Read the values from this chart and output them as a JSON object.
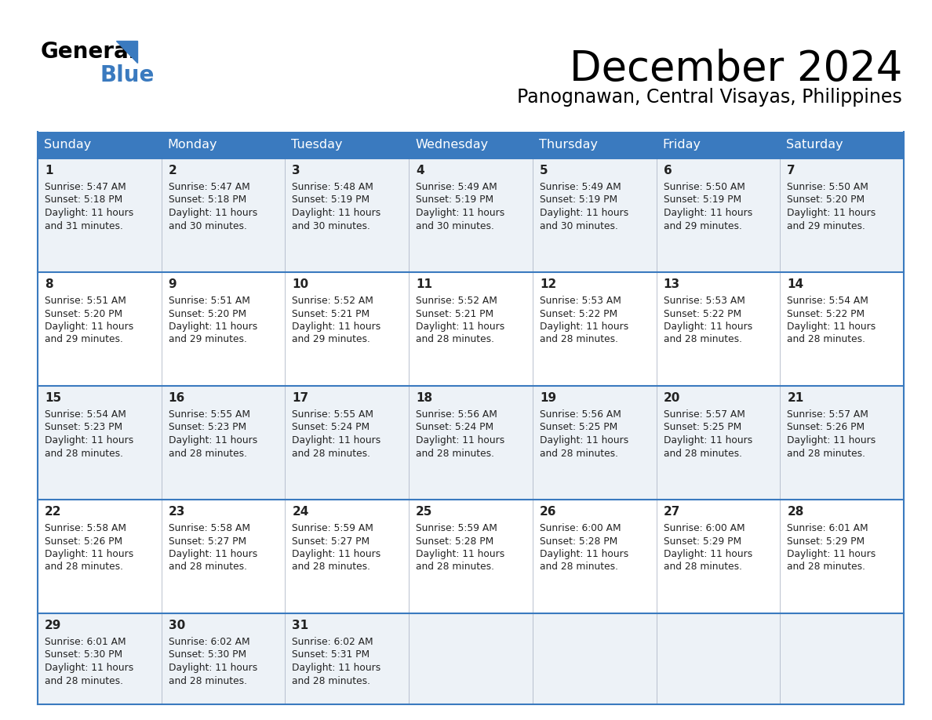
{
  "title": "December 2024",
  "subtitle": "Panognawan, Central Visayas, Philippines",
  "header_bg": "#3a7abf",
  "header_text": "#ffffff",
  "cell_bg_light": "#edf2f7",
  "cell_bg_white": "#ffffff",
  "row_line_color": "#3a7abf",
  "text_color": "#222222",
  "days_of_week": [
    "Sunday",
    "Monday",
    "Tuesday",
    "Wednesday",
    "Thursday",
    "Friday",
    "Saturday"
  ],
  "calendar": [
    [
      {
        "day": 1,
        "sunrise": "5:47 AM",
        "sunset": "5:18 PM",
        "minutes": "31"
      },
      {
        "day": 2,
        "sunrise": "5:47 AM",
        "sunset": "5:18 PM",
        "minutes": "30"
      },
      {
        "day": 3,
        "sunrise": "5:48 AM",
        "sunset": "5:19 PM",
        "minutes": "30"
      },
      {
        "day": 4,
        "sunrise": "5:49 AM",
        "sunset": "5:19 PM",
        "minutes": "30"
      },
      {
        "day": 5,
        "sunrise": "5:49 AM",
        "sunset": "5:19 PM",
        "minutes": "30"
      },
      {
        "day": 6,
        "sunrise": "5:50 AM",
        "sunset": "5:19 PM",
        "minutes": "29"
      },
      {
        "day": 7,
        "sunrise": "5:50 AM",
        "sunset": "5:20 PM",
        "minutes": "29"
      }
    ],
    [
      {
        "day": 8,
        "sunrise": "5:51 AM",
        "sunset": "5:20 PM",
        "minutes": "29"
      },
      {
        "day": 9,
        "sunrise": "5:51 AM",
        "sunset": "5:20 PM",
        "minutes": "29"
      },
      {
        "day": 10,
        "sunrise": "5:52 AM",
        "sunset": "5:21 PM",
        "minutes": "29"
      },
      {
        "day": 11,
        "sunrise": "5:52 AM",
        "sunset": "5:21 PM",
        "minutes": "28"
      },
      {
        "day": 12,
        "sunrise": "5:53 AM",
        "sunset": "5:22 PM",
        "minutes": "28"
      },
      {
        "day": 13,
        "sunrise": "5:53 AM",
        "sunset": "5:22 PM",
        "minutes": "28"
      },
      {
        "day": 14,
        "sunrise": "5:54 AM",
        "sunset": "5:22 PM",
        "minutes": "28"
      }
    ],
    [
      {
        "day": 15,
        "sunrise": "5:54 AM",
        "sunset": "5:23 PM",
        "minutes": "28"
      },
      {
        "day": 16,
        "sunrise": "5:55 AM",
        "sunset": "5:23 PM",
        "minutes": "28"
      },
      {
        "day": 17,
        "sunrise": "5:55 AM",
        "sunset": "5:24 PM",
        "minutes": "28"
      },
      {
        "day": 18,
        "sunrise": "5:56 AM",
        "sunset": "5:24 PM",
        "minutes": "28"
      },
      {
        "day": 19,
        "sunrise": "5:56 AM",
        "sunset": "5:25 PM",
        "minutes": "28"
      },
      {
        "day": 20,
        "sunrise": "5:57 AM",
        "sunset": "5:25 PM",
        "minutes": "28"
      },
      {
        "day": 21,
        "sunrise": "5:57 AM",
        "sunset": "5:26 PM",
        "minutes": "28"
      }
    ],
    [
      {
        "day": 22,
        "sunrise": "5:58 AM",
        "sunset": "5:26 PM",
        "minutes": "28"
      },
      {
        "day": 23,
        "sunrise": "5:58 AM",
        "sunset": "5:27 PM",
        "minutes": "28"
      },
      {
        "day": 24,
        "sunrise": "5:59 AM",
        "sunset": "5:27 PM",
        "minutes": "28"
      },
      {
        "day": 25,
        "sunrise": "5:59 AM",
        "sunset": "5:28 PM",
        "minutes": "28"
      },
      {
        "day": 26,
        "sunrise": "6:00 AM",
        "sunset": "5:28 PM",
        "minutes": "28"
      },
      {
        "day": 27,
        "sunrise": "6:00 AM",
        "sunset": "5:29 PM",
        "minutes": "28"
      },
      {
        "day": 28,
        "sunrise": "6:01 AM",
        "sunset": "5:29 PM",
        "minutes": "28"
      }
    ],
    [
      {
        "day": 29,
        "sunrise": "6:01 AM",
        "sunset": "5:30 PM",
        "minutes": "28"
      },
      {
        "day": 30,
        "sunrise": "6:02 AM",
        "sunset": "5:30 PM",
        "minutes": "28"
      },
      {
        "day": 31,
        "sunrise": "6:02 AM",
        "sunset": "5:31 PM",
        "minutes": "28"
      },
      null,
      null,
      null,
      null
    ]
  ]
}
